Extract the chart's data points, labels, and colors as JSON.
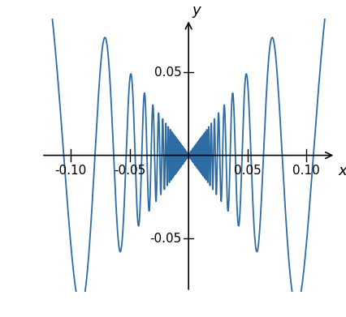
{
  "xlim": [
    -0.125,
    0.125
  ],
  "ylim": [
    -0.082,
    0.082
  ],
  "xticks": [
    -0.1,
    -0.05,
    0.05,
    0.1
  ],
  "yticks": [
    -0.05,
    0.05
  ],
  "xlabel": "x",
  "ylabel": "y",
  "line_color": "#2E6DA4",
  "line_width": 1.3,
  "background_color": "#ffffff",
  "num_points": 80000,
  "figsize": [
    4.26,
    3.91
  ],
  "dpi": 100
}
